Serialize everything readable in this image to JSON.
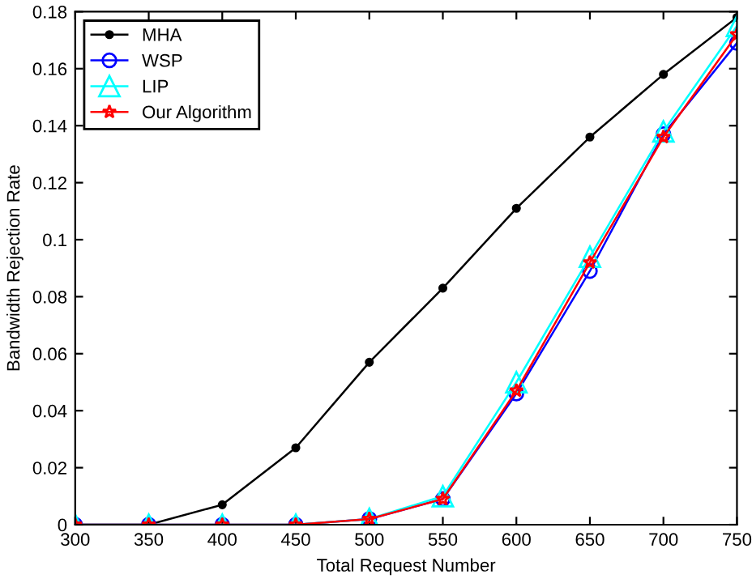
{
  "chart_data": {
    "type": "line",
    "xlabel": "Total Request Number",
    "ylabel": "Bandwidth Rejection Rate",
    "x": [
      300,
      350,
      400,
      450,
      500,
      550,
      600,
      650,
      700,
      750
    ],
    "series": [
      {
        "name": "MHA",
        "color": "#000000",
        "marker": "circle",
        "values": [
          0,
          0,
          0.007,
          0.027,
          0.057,
          0.083,
          0.111,
          0.136,
          0.158,
          0.178
        ]
      },
      {
        "name": "WSP",
        "color": "#0000ff",
        "marker": "circle",
        "values": [
          0,
          0,
          0,
          0,
          0.002,
          0.009,
          0.046,
          0.089,
          0.137,
          0.169
        ]
      },
      {
        "name": "LIP",
        "color": "#00ffff",
        "marker": "triangle",
        "values": [
          0,
          0,
          0,
          0,
          0.002,
          0.01,
          0.05,
          0.094,
          0.138,
          0.175
        ]
      },
      {
        "name": "Our Algorithm",
        "color": "#ff0000",
        "marker": "star",
        "values": [
          0,
          0,
          0,
          0,
          0.002,
          0.009,
          0.047,
          0.092,
          0.136,
          0.172
        ]
      }
    ],
    "xlim": [
      300,
      750
    ],
    "xticks": [
      300,
      350,
      400,
      450,
      500,
      550,
      600,
      650,
      700,
      750
    ],
    "ylim": [
      0,
      0.18
    ],
    "yticks": [
      0,
      0.02,
      0.04,
      0.06,
      0.08,
      0.1,
      0.12,
      0.14,
      0.16,
      0.18
    ],
    "grid": false,
    "legend": "top left",
    "line_style": "solid"
  }
}
